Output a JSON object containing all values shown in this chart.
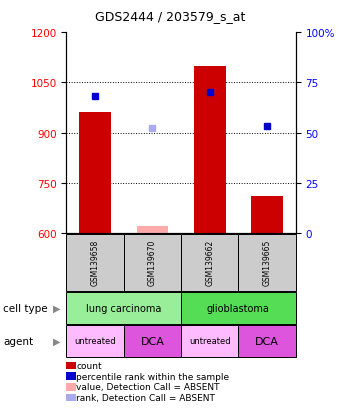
{
  "title": "GDS2444 / 203579_s_at",
  "samples": [
    "GSM139658",
    "GSM139670",
    "GSM139662",
    "GSM139665"
  ],
  "bar_values": [
    960,
    620,
    1100,
    710
  ],
  "bar_present": [
    true,
    false,
    true,
    true
  ],
  "rank_values": [
    68,
    52,
    70,
    53
  ],
  "rank_present": [
    true,
    false,
    true,
    true
  ],
  "ylim_left": [
    600,
    1200
  ],
  "ylim_right": [
    0,
    100
  ],
  "yticks_left": [
    600,
    750,
    900,
    1050,
    1200
  ],
  "yticks_right": [
    0,
    25,
    50,
    75,
    100
  ],
  "cell_type_labels": [
    "lung carcinoma",
    "glioblastoma"
  ],
  "cell_type_colors": [
    "#99ee99",
    "#55dd55"
  ],
  "agent_labels": [
    "untreated",
    "DCA",
    "untreated",
    "DCA"
  ],
  "agent_colors_map": {
    "untreated": "#ffbbff",
    "DCA": "#dd55dd"
  },
  "legend_items": [
    {
      "color": "#cc0000",
      "label": "count"
    },
    {
      "color": "#0000cc",
      "label": "percentile rank within the sample"
    },
    {
      "color": "#ffaaaa",
      "label": "value, Detection Call = ABSENT"
    },
    {
      "color": "#aaaaee",
      "label": "rank, Detection Call = ABSENT"
    }
  ],
  "sample_box_color": "#cccccc",
  "bar_color_present": "#cc0000",
  "bar_color_absent": "#ffaaaa",
  "rank_color_present": "#0000cc",
  "rank_color_absent": "#aaaaee",
  "tick_fontsize": 7.5
}
